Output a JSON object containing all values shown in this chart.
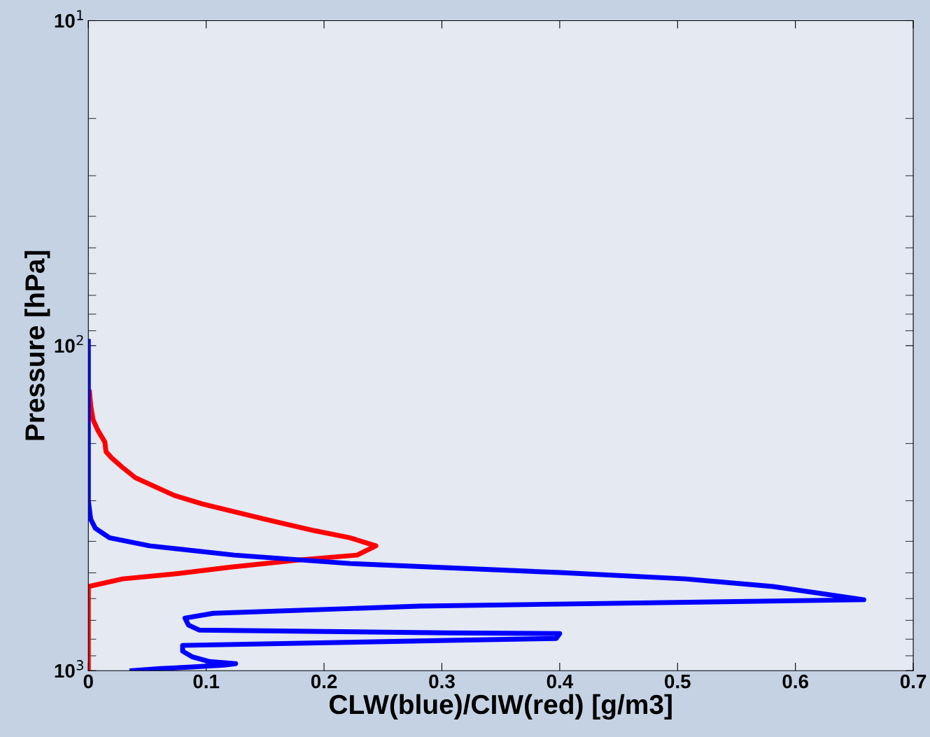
{
  "chart_data": {
    "type": "line",
    "xlabel": "CLW(blue)/CIW(red) [g/m3]",
    "ylabel": "Pressure [hPa]",
    "log": "y",
    "xlim": [
      0,
      0.7
    ],
    "xticks": [
      0,
      0.1,
      0.2,
      0.3,
      0.4,
      0.5,
      0.6,
      0.7
    ],
    "ylim": [
      1000,
      10
    ],
    "yticks": [
      {
        "value": 10,
        "label": "10$^{1}$"
      },
      {
        "value": 100,
        "label": "10$^{2}$"
      },
      {
        "value": 1000,
        "label": "10$^{3}$"
      }
    ],
    "grid": false,
    "marker": "none",
    "line_style": "solid",
    "series": [
      {
        "color": "#ff0000",
        "x": [
          0,
          0,
          0.029,
          0.073,
          0.121,
          0.18,
          0.228,
          0.244,
          0.222,
          0.192,
          0.15,
          0.097,
          0.073,
          0.04,
          0.029,
          0.02,
          0.015,
          0.014,
          0.008,
          0.004,
          0.002,
          0.001
        ],
        "values": [
          1000,
          551,
          522,
          504,
          480,
          456,
          441,
          413,
          390,
          371,
          342,
          307,
          289,
          255,
          237,
          222,
          212,
          198,
          182,
          169,
          153,
          139
        ]
      },
      {
        "color": "#0000ff",
        "x": [
          0,
          0,
          0,
          0.002,
          0.006,
          0.018,
          0.052,
          0.124,
          0.222,
          0.4,
          0.507,
          0.581,
          0.658,
          0.519,
          0.281,
          0.106,
          0.082,
          0.085,
          0.094,
          0.305,
          0.4,
          0.397,
          0.305,
          0.08,
          0.08,
          0.088,
          0.103,
          0.125,
          0.115,
          0.085,
          0.061,
          0.037
        ],
        "values": [
          97,
          169,
          300,
          342,
          365,
          390,
          413,
          441,
          468,
          499,
          522,
          551,
          605,
          615,
          633,
          666,
          689,
          724,
          750,
          765,
          769,
          796,
          807,
          836,
          871,
          906,
          938,
          952,
          961,
          976,
          985,
          1000
        ]
      }
    ]
  }
}
